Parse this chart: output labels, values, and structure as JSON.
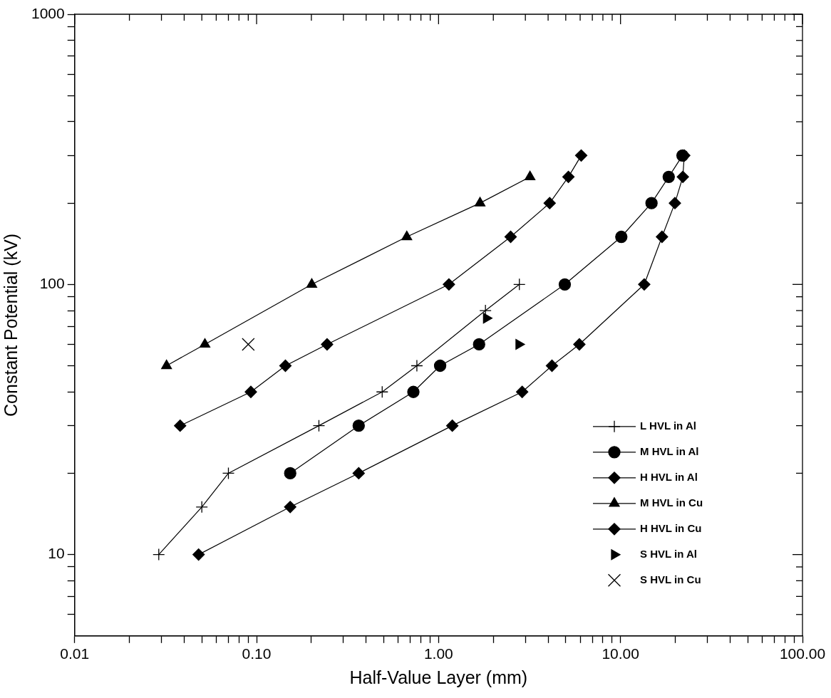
{
  "chart_data": {
    "type": "line",
    "xlabel": "Half-Value Layer (mm)",
    "ylabel": "Constant Potential (kV)",
    "log": "xy",
    "grid": false,
    "legend": "bottom right",
    "line_style": "solid",
    "xlim": [
      0.01,
      100
    ],
    "ylim": [
      5,
      1000
    ],
    "xticks": [
      {
        "value": 0.01,
        "label": "0.01"
      },
      {
        "value": 0.02,
        "label": null
      },
      {
        "value": 0.03,
        "label": null
      },
      {
        "value": 0.04,
        "label": null
      },
      {
        "value": 0.05,
        "label": null
      },
      {
        "value": 0.06,
        "label": null
      },
      {
        "value": 0.07,
        "label": null
      },
      {
        "value": 0.08,
        "label": null
      },
      {
        "value": 0.09,
        "label": null
      },
      {
        "value": 0.1,
        "label": "0.10"
      },
      {
        "value": 0.2,
        "label": null
      },
      {
        "value": 0.3,
        "label": null
      },
      {
        "value": 0.4,
        "label": null
      },
      {
        "value": 0.5,
        "label": null
      },
      {
        "value": 0.6,
        "label": null
      },
      {
        "value": 0.7,
        "label": null
      },
      {
        "value": 0.8,
        "label": null
      },
      {
        "value": 0.9,
        "label": null
      },
      {
        "value": 1,
        "label": "1.00"
      },
      {
        "value": 2,
        "label": null
      },
      {
        "value": 3,
        "label": null
      },
      {
        "value": 4,
        "label": null
      },
      {
        "value": 5,
        "label": null
      },
      {
        "value": 6,
        "label": null
      },
      {
        "value": 7,
        "label": null
      },
      {
        "value": 8,
        "label": null
      },
      {
        "value": 9,
        "label": null
      },
      {
        "value": 10,
        "label": "10.00"
      },
      {
        "value": 20,
        "label": null
      },
      {
        "value": 30,
        "label": null
      },
      {
        "value": 40,
        "label": null
      },
      {
        "value": 50,
        "label": null
      },
      {
        "value": 60,
        "label": null
      },
      {
        "value": 70,
        "label": null
      },
      {
        "value": 80,
        "label": null
      },
      {
        "value": 90,
        "label": null
      },
      {
        "value": 100,
        "label": "100.00"
      }
    ],
    "yticks": [
      {
        "value": 6,
        "label": null
      },
      {
        "value": 7,
        "label": null
      },
      {
        "value": 8,
        "label": null
      },
      {
        "value": 9,
        "label": null
      },
      10,
      {
        "value": 20,
        "label": null
      },
      {
        "value": 30,
        "label": null
      },
      {
        "value": 40,
        "label": null
      },
      {
        "value": 50,
        "label": null
      },
      {
        "value": 60,
        "label": null
      },
      {
        "value": 70,
        "label": null
      },
      {
        "value": 80,
        "label": null
      },
      {
        "value": 90,
        "label": null
      },
      100,
      {
        "value": 200,
        "label": null
      },
      {
        "value": 300,
        "label": null
      },
      {
        "value": 400,
        "label": null
      },
      {
        "value": 500,
        "label": null
      },
      {
        "value": 600,
        "label": null
      },
      {
        "value": 700,
        "label": null
      },
      {
        "value": 800,
        "label": null
      },
      {
        "value": 900,
        "label": null
      },
      1000
    ],
    "series": [
      {
        "name": "L HVL in Al",
        "marker": "cross",
        "color": "#000000",
        "x": [
          0.029,
          0.05,
          0.07,
          0.22,
          0.49,
          0.76,
          1.81,
          2.78
        ],
        "values": [
          10,
          15,
          20,
          30,
          40,
          50,
          80,
          100
        ]
      },
      {
        "name": "M HVL in Al",
        "marker": "circle",
        "color": "#000000",
        "x": [
          0.153,
          0.364,
          0.727,
          1.02,
          1.67,
          4.94,
          10.1,
          14.8,
          18.4,
          21.9
        ],
        "values": [
          20,
          30,
          40,
          50,
          60,
          100,
          150,
          200,
          250,
          300
        ]
      },
      {
        "name": "H HVL in Al",
        "marker": "diamond",
        "color": "#000000",
        "x": [
          0.048,
          0.153,
          0.364,
          1.19,
          2.88,
          4.2,
          5.94,
          13.5,
          16.9,
          19.9,
          22.0,
          22.4
        ],
        "values": [
          10,
          15,
          20,
          30,
          40,
          50,
          60,
          100,
          150,
          200,
          250,
          300
        ]
      },
      {
        "name": "M HVL in Cu",
        "marker": "triangle",
        "color": "#000000",
        "x": [
          0.032,
          0.052,
          0.201,
          0.669,
          1.69,
          3.18
        ],
        "values": [
          50,
          60,
          100,
          150,
          200,
          250
        ]
      },
      {
        "name": "H HVL in Cu",
        "marker": "diamond",
        "color": "#000000",
        "x": [
          0.038,
          0.093,
          0.144,
          0.244,
          1.14,
          2.49,
          4.08,
          5.17,
          6.08
        ],
        "values": [
          30,
          40,
          50,
          60,
          100,
          150,
          200,
          250,
          300
        ]
      },
      {
        "name": "S HVL in Al",
        "type": "scatter",
        "marker": "triangle-right",
        "color": "#000000",
        "x": [
          1.83,
          2.76
        ],
        "values": [
          75,
          60
        ]
      },
      {
        "name": "S HVL in Cu",
        "type": "scatter",
        "marker": "x",
        "color": "#000000",
        "x": [
          0.09
        ],
        "values": [
          60
        ]
      }
    ]
  }
}
